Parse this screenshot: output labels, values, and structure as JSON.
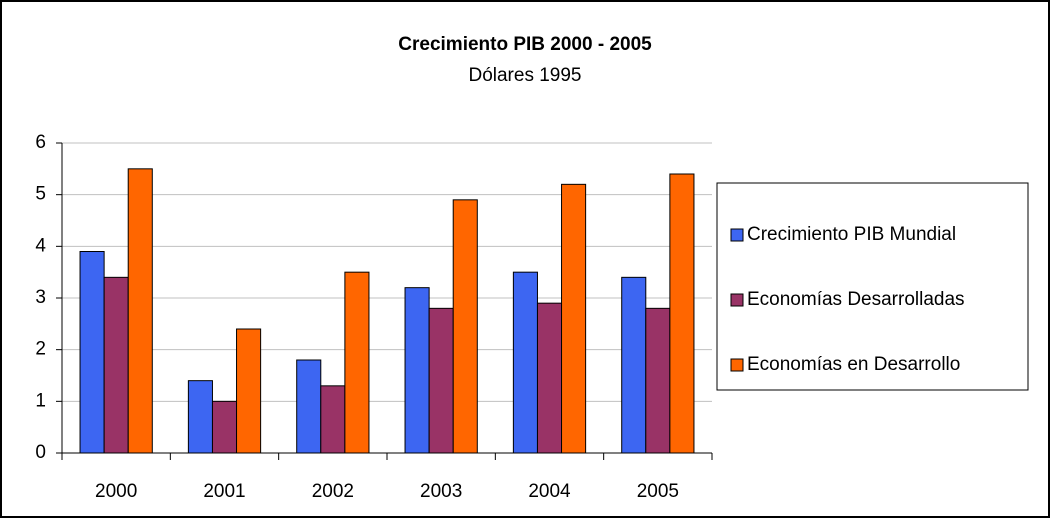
{
  "chart_data": {
    "type": "bar",
    "title": "Crecimiento PIB 2000 - 2005",
    "subtitle": "Dólares 1995",
    "categories": [
      "2000",
      "2001",
      "2002",
      "2003",
      "2004",
      "2005"
    ],
    "series": [
      {
        "name": "Crecimiento PIB Mundial",
        "color": "#3d66f2",
        "values": [
          3.9,
          1.4,
          1.8,
          3.2,
          3.5,
          3.4
        ]
      },
      {
        "name": "Economías Desarrolladas",
        "color": "#993366",
        "values": [
          3.4,
          1.0,
          1.3,
          2.8,
          2.9,
          2.8
        ]
      },
      {
        "name": "Economías en Desarrollo",
        "color": "#ff6600",
        "values": [
          5.5,
          2.4,
          3.5,
          4.9,
          5.2,
          5.4
        ]
      }
    ],
    "ylim": [
      0,
      6
    ],
    "yticks": [
      0,
      1,
      2,
      3,
      4,
      5,
      6
    ],
    "grid": true,
    "legend": "right"
  }
}
